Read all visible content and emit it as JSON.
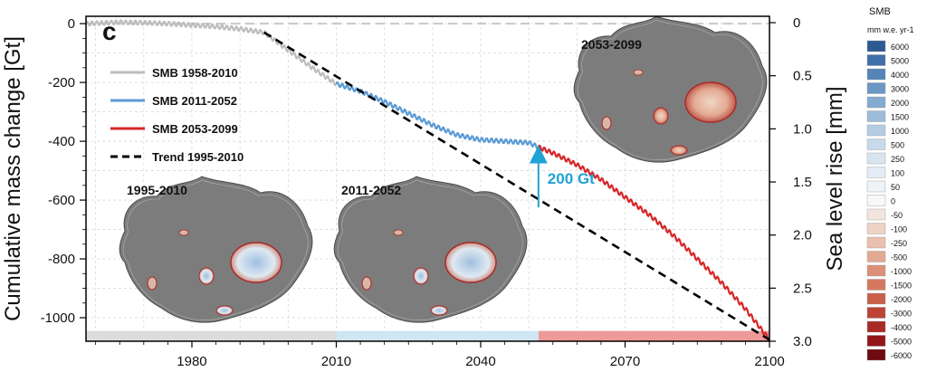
{
  "chart_data": {
    "type": "line",
    "panel_label": "c",
    "ylabel": "Cumulative mass change [Gt]",
    "ylabel_right": "Sea level rise [mm]",
    "xlim": [
      1958,
      2100
    ],
    "ylim": [
      -1080,
      25
    ],
    "right_ylim": [
      -0.06,
      3.0
    ],
    "grid": true,
    "x_ticks": [
      1980,
      2010,
      2040,
      2070,
      2100
    ],
    "y_ticks": [
      0,
      -200,
      -400,
      -600,
      -800,
      -1000
    ],
    "right_ticks": [
      "0",
      "0.5",
      "1.0",
      "1.5",
      "2.0",
      "2.5",
      "3.0"
    ],
    "right_tick_values": [
      0,
      0.5,
      1.0,
      1.5,
      2.0,
      2.5,
      3.0
    ],
    "legend_position": "left-top",
    "series": [
      {
        "name": "SMB 1958-2010",
        "color": "#bdbdbd",
        "style": "solid",
        "x": [
          1958,
          1965,
          1970,
          1975,
          1980,
          1985,
          1990,
          1995,
          2000,
          2005,
          2010
        ],
        "y": [
          0,
          5,
          3,
          0,
          -5,
          -10,
          -18,
          -30,
          -90,
          -150,
          -205
        ]
      },
      {
        "name": "SMB 2011-2052",
        "color": "#5b9bd5",
        "style": "solid",
        "x": [
          2010,
          2015,
          2020,
          2025,
          2030,
          2035,
          2040,
          2045,
          2050,
          2052
        ],
        "y": [
          -205,
          -230,
          -265,
          -305,
          -345,
          -378,
          -395,
          -400,
          -405,
          -420
        ]
      },
      {
        "name": "SMB 2053-2099",
        "color": "#d62728",
        "style": "solid",
        "x": [
          2052,
          2055,
          2060,
          2065,
          2070,
          2075,
          2080,
          2085,
          2090,
          2095,
          2100
        ],
        "y": [
          -420,
          -440,
          -480,
          -530,
          -590,
          -650,
          -720,
          -800,
          -880,
          -970,
          -1075
        ]
      },
      {
        "name": "Trend 1995-2010",
        "color": "#000000",
        "style": "dashed",
        "x": [
          1995,
          2100
        ],
        "y": [
          -30,
          -1075
        ]
      }
    ],
    "annotations": [
      {
        "text": "200 Gt",
        "color": "#1fa2d4",
        "arrow_x": 2052,
        "arrow_from_y": -625,
        "arrow_to_y": -420
      }
    ],
    "period_bars": [
      {
        "from": 1958,
        "to": 2010,
        "color": "#dcdcdc"
      },
      {
        "from": 2010,
        "to": 2052,
        "color": "#cfe6f3"
      },
      {
        "from": 2052,
        "to": 2100,
        "color": "#ee9a9a"
      }
    ],
    "map_insets": [
      {
        "label": "1995-2010"
      },
      {
        "label": "2011-2052"
      },
      {
        "label": "2053-2099"
      }
    ],
    "colorbar": {
      "title": "SMB",
      "unit": "mm w.e. yr-1",
      "labels": [
        "6000",
        "5000",
        "4000",
        "3000",
        "2000",
        "1500",
        "1000",
        "500",
        "250",
        "100",
        "50",
        "0",
        "-50",
        "-100",
        "-250",
        "-500",
        "-1000",
        "-1500",
        "-2000",
        "-3000",
        "-4000",
        "-5000",
        "-6000"
      ],
      "colors": [
        "#2e5a94",
        "#3f6fa8",
        "#5584b8",
        "#6b97c4",
        "#83aacf",
        "#9cbcd9",
        "#b4cde3",
        "#c8daea",
        "#d8e5f0",
        "#e4edf5",
        "#eef3f8",
        "#f7f7f7",
        "#f3e4dd",
        "#eed3c5",
        "#e9c0ae",
        "#e3aa93",
        "#dc9077",
        "#d4795f",
        "#c95f49",
        "#bb4436",
        "#a92a26",
        "#921519",
        "#6e0a10"
      ]
    }
  }
}
